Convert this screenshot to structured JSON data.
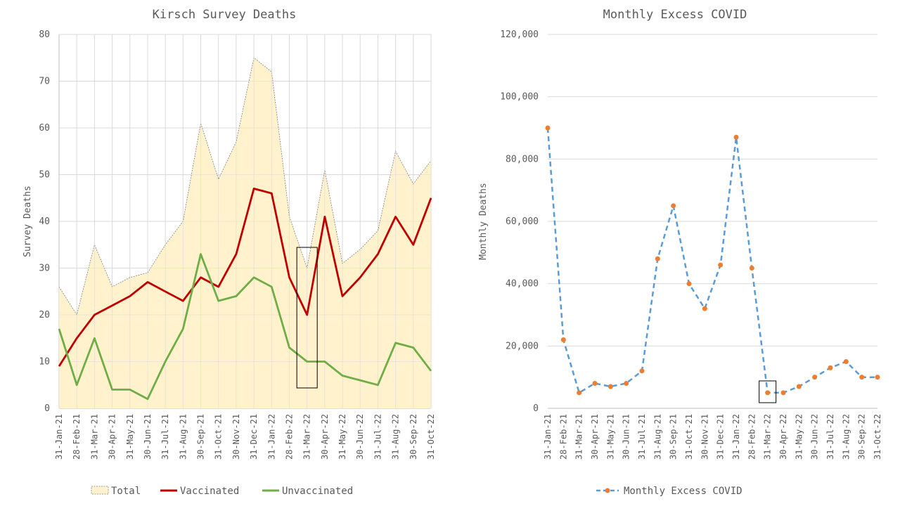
{
  "chart_data": [
    {
      "type": "area",
      "title": "Kirsch Survey Deaths",
      "ylabel": "Survey Deaths",
      "xlabel": "",
      "ylim": [
        0,
        80
      ],
      "yticks": [
        "0",
        "10",
        "20",
        "30",
        "40",
        "50",
        "60",
        "70",
        "80"
      ],
      "grid": true,
      "legend_position": "bottom",
      "categories": [
        "31-Jan-21",
        "28-Feb-21",
        "31-Mar-21",
        "30-Apr-21",
        "31-May-21",
        "30-Jun-21",
        "31-Jul-21",
        "31-Aug-21",
        "30-Sep-21",
        "31-Oct-21",
        "30-Nov-21",
        "31-Dec-21",
        "31-Jan-22",
        "28-Feb-22",
        "31-Mar-22",
        "30-Apr-22",
        "31-May-22",
        "30-Jun-22",
        "31-Jul-22",
        "31-Aug-22",
        "30-Sep-22",
        "31-Oct-22"
      ],
      "highlight_category": "31-Mar-22",
      "series": [
        {
          "name": "Total",
          "style": "area",
          "color": "#fff2cc",
          "stroke": "#7f7f7f",
          "values": [
            26,
            20,
            35,
            26,
            28,
            29,
            35,
            40,
            61,
            49,
            57,
            75,
            72,
            41,
            30,
            51,
            31,
            34,
            38,
            55,
            48,
            53
          ]
        },
        {
          "name": "Vaccinated",
          "style": "line",
          "color": "#c00000",
          "values": [
            9,
            15,
            20,
            22,
            24,
            27,
            25,
            23,
            28,
            26,
            33,
            47,
            46,
            28,
            20,
            41,
            24,
            28,
            33,
            41,
            35,
            45
          ]
        },
        {
          "name": "Unvaccinated",
          "style": "line",
          "color": "#70ad47",
          "values": [
            17,
            5,
            15,
            4,
            4,
            2,
            10,
            17,
            33,
            23,
            24,
            28,
            26,
            13,
            10,
            10,
            7,
            6,
            5,
            14,
            13,
            8
          ]
        }
      ]
    },
    {
      "type": "line",
      "title": "Monthly Excess COVID",
      "ylabel": "Monthly Deaths",
      "xlabel": "",
      "ylim": [
        0,
        120000
      ],
      "yticks": [
        "0",
        "20,000",
        "40,000",
        "60,000",
        "80,000",
        "100,000",
        "120,000"
      ],
      "grid": true,
      "legend_position": "bottom",
      "categories": [
        "31-Jan-21",
        "28-Feb-21",
        "31-Mar-21",
        "30-Apr-21",
        "31-May-21",
        "30-Jun-21",
        "31-Jul-21",
        "31-Aug-21",
        "30-Sep-21",
        "31-Oct-21",
        "30-Nov-21",
        "31-Dec-21",
        "31-Jan-22",
        "28-Feb-22",
        "31-Mar-22",
        "30-Apr-22",
        "31-May-22",
        "30-Jun-22",
        "31-Jul-22",
        "31-Aug-22",
        "30-Sep-22",
        "31-Oct-22"
      ],
      "highlight_category": "31-Mar-22",
      "series": [
        {
          "name": "Monthly Excess COVID",
          "style": "dashed-line-markers",
          "color": "#5b9bd5",
          "marker_color": "#ed7d31",
          "values": [
            90000,
            22000,
            5000,
            8000,
            7000,
            8000,
            12000,
            48000,
            65000,
            40000,
            32000,
            46000,
            87000,
            45000,
            5000,
            5000,
            7000,
            10000,
            13000,
            15000,
            10000,
            10000
          ]
        }
      ]
    }
  ]
}
